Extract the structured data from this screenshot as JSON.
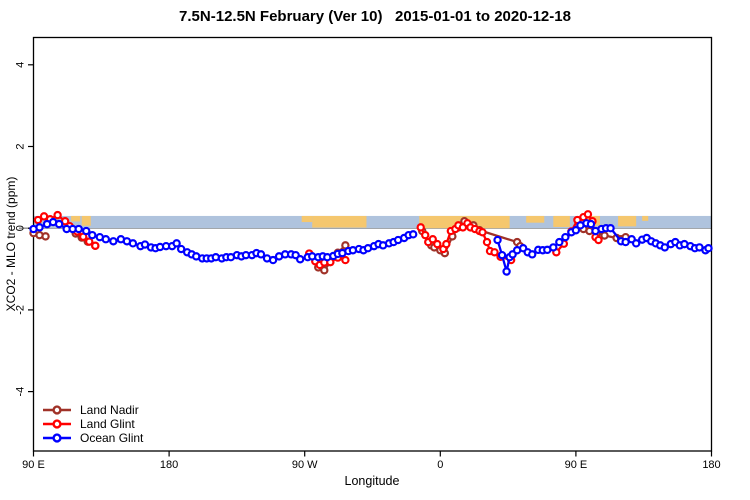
{
  "header": {
    "title": "7.5N-12.5N February (Ver 10)   2015-01-01 to 2020-12-18"
  },
  "colors": {
    "land_nadir": "#A03228",
    "land_glint": "#FF0000",
    "ocean_glint": "#0000FF",
    "band_ocean": "#AFC3DD",
    "band_land": "#F5C76E",
    "zero_line": "#8C8C8C",
    "axis": "#000000"
  },
  "legend": {
    "items": [
      {
        "label": "Land Nadir",
        "color_key": "land_nadir"
      },
      {
        "label": "Land Glint",
        "color_key": "land_glint"
      },
      {
        "label": "Ocean Glint",
        "color_key": "ocean_glint"
      }
    ]
  },
  "chart_data": {
    "type": "line",
    "title": "7.5N-12.5N February (Ver 10)   2015-01-01 to 2020-12-18",
    "xlabel": "Longitude",
    "ylabel": "XCO2 - MLO trend (ppm)",
    "x_axis_note": "longitude in degrees east of 90E, wrapping eastward 90E→180→90W→0→90E→180",
    "xlim": [
      0,
      450
    ],
    "ylim": [
      -5.4,
      4.6
    ],
    "grid": false,
    "legend_position": "bottom-left",
    "x_ticks": [
      {
        "pos": 0,
        "label": "90 E"
      },
      {
        "pos": 90,
        "label": "180"
      },
      {
        "pos": 180,
        "label": "90 W"
      },
      {
        "pos": 270,
        "label": "0"
      },
      {
        "pos": 360,
        "label": "90 E"
      },
      {
        "pos": 450,
        "label": "180"
      }
    ],
    "y_ticks": [
      {
        "pos": -4,
        "label": "-4"
      },
      {
        "pos": -2,
        "label": "-2"
      },
      {
        "pos": 0,
        "label": "0"
      },
      {
        "pos": 2,
        "label": "2"
      },
      {
        "pos": 4,
        "label": "4"
      }
    ],
    "map_band": {
      "description": "world-map latitude strip 7.5N-12.5N drawn along y=0 to y=+0.3, ocean blue with tan land patches",
      "y_range_ppm": [
        0.0,
        0.3
      ],
      "land_patches": [
        {
          "from": 25,
          "to": 31,
          "h": 0.45
        },
        {
          "from": 32,
          "to": 38,
          "h": 0.8
        },
        {
          "from": 178,
          "to": 185,
          "h": 0.5
        },
        {
          "from": 185,
          "to": 221,
          "h": 0.95
        },
        {
          "from": 256,
          "to": 316,
          "h": 1.0
        },
        {
          "from": 327,
          "to": 339,
          "h": 0.55
        },
        {
          "from": 345,
          "to": 356,
          "h": 0.9
        },
        {
          "from": 367,
          "to": 376,
          "h": 0.8
        },
        {
          "from": 388,
          "to": 400,
          "h": 0.85
        },
        {
          "from": 404,
          "to": 408,
          "h": 0.4
        }
      ]
    },
    "series": [
      {
        "name": "Land Nadir",
        "color_key": "land_nadir",
        "segments": [
          [
            [
              0,
              -0.12
            ],
            [
              4,
              -0.17
            ],
            [
              8,
              -0.2
            ]
          ],
          [
            [
              28,
              -0.13
            ],
            [
              32,
              -0.23
            ],
            [
              36,
              -0.33
            ],
            [
              41,
              -0.43
            ]
          ],
          [
            [
              189,
              -0.96
            ],
            [
              193,
              -1.03
            ],
            [
              197,
              -0.83
            ],
            [
              202,
              -0.6
            ],
            [
              207,
              -0.42
            ]
          ],
          [
            [
              258,
              -0.07
            ],
            [
              264,
              -0.42
            ],
            [
              266,
              -0.47
            ],
            [
              270,
              -0.54
            ],
            [
              273,
              -0.61
            ],
            [
              278,
              -0.2
            ],
            [
              282,
              0.02
            ],
            [
              286,
              0.17
            ],
            [
              289,
              0.07
            ],
            [
              292,
              0.07
            ],
            [
              296,
              -0.05
            ],
            [
              321,
              -0.34
            ],
            [
              323,
              -0.44
            ]
          ],
          [
            [
              365,
              -0.02
            ],
            [
              369,
              -0.07
            ],
            [
              374,
              -0.12
            ],
            [
              379,
              -0.18
            ],
            [
              387,
              -0.24
            ],
            [
              390,
              -0.27
            ],
            [
              393,
              -0.22
            ]
          ]
        ]
      },
      {
        "name": "Land Glint",
        "color_key": "land_glint",
        "segments": [
          [
            [
              3,
              0.2
            ],
            [
              7,
              0.29
            ],
            [
              11,
              0.22
            ],
            [
              16,
              0.32
            ],
            [
              21,
              0.17
            ],
            [
              24,
              0.05
            ],
            [
              29,
              -0.08
            ],
            [
              33,
              -0.21
            ],
            [
              37,
              -0.33
            ],
            [
              41,
              -0.43
            ]
          ],
          [
            [
              183,
              -0.62
            ],
            [
              187,
              -0.81
            ],
            [
              190,
              -0.9
            ],
            [
              193,
              -0.84
            ],
            [
              197,
              -0.83
            ],
            [
              202,
              -0.72
            ],
            [
              207,
              -0.78
            ]
          ],
          [
            [
              257,
              0.02
            ],
            [
              260,
              -0.17
            ],
            [
              262,
              -0.34
            ],
            [
              265,
              -0.27
            ],
            [
              268,
              -0.39
            ],
            [
              272,
              -0.51
            ],
            [
              274,
              -0.39
            ],
            [
              277,
              -0.07
            ],
            [
              280,
              -0.02
            ],
            [
              282,
              0.07
            ],
            [
              285,
              0.02
            ],
            [
              288,
              0.12
            ],
            [
              290,
              0.02
            ],
            [
              293,
              -0.02
            ],
            [
              296,
              -0.07
            ],
            [
              298,
              -0.1
            ],
            [
              301,
              -0.34
            ],
            [
              303,
              -0.56
            ],
            [
              306,
              -0.59
            ],
            [
              310,
              -0.7
            ],
            [
              317,
              -0.78
            ]
          ],
          [
            [
              347,
              -0.59
            ],
            [
              352,
              -0.38
            ],
            [
              357,
              -0.08
            ],
            [
              361,
              0.2
            ],
            [
              365,
              0.27
            ],
            [
              368,
              0.34
            ],
            [
              371,
              0.17
            ],
            [
              373,
              -0.22
            ],
            [
              375,
              -0.29
            ]
          ]
        ]
      },
      {
        "name": "Ocean Glint",
        "color_key": "ocean_glint",
        "segments": [
          [
            [
              0,
              -0.02
            ],
            [
              4,
              0.02
            ],
            [
              9,
              0.1
            ],
            [
              13,
              0.15
            ],
            [
              17,
              0.1
            ],
            [
              22,
              -0.02
            ],
            [
              26,
              -0.02
            ],
            [
              30,
              -0.02
            ],
            [
              35,
              -0.07
            ],
            [
              39,
              -0.17
            ],
            [
              44,
              -0.22
            ],
            [
              48,
              -0.27
            ],
            [
              53,
              -0.32
            ],
            [
              58,
              -0.27
            ],
            [
              62,
              -0.32
            ],
            [
              66,
              -0.37
            ],
            [
              71,
              -0.44
            ],
            [
              74,
              -0.4
            ],
            [
              78,
              -0.47
            ],
            [
              81,
              -0.49
            ],
            [
              84,
              -0.46
            ],
            [
              88,
              -0.44
            ],
            [
              92,
              -0.44
            ],
            [
              95,
              -0.37
            ],
            [
              98,
              -0.51
            ],
            [
              102,
              -0.59
            ],
            [
              105,
              -0.64
            ],
            [
              108,
              -0.69
            ],
            [
              112,
              -0.74
            ],
            [
              115,
              -0.74
            ],
            [
              118,
              -0.74
            ],
            [
              121,
              -0.71
            ],
            [
              125,
              -0.74
            ],
            [
              128,
              -0.71
            ],
            [
              131,
              -0.71
            ],
            [
              135,
              -0.66
            ],
            [
              138,
              -0.69
            ],
            [
              141,
              -0.66
            ],
            [
              145,
              -0.66
            ],
            [
              148,
              -0.61
            ],
            [
              151,
              -0.64
            ],
            [
              155,
              -0.74
            ],
            [
              159,
              -0.78
            ],
            [
              163,
              -0.69
            ],
            [
              167,
              -0.64
            ],
            [
              171,
              -0.64
            ],
            [
              174,
              -0.66
            ],
            [
              177,
              -0.76
            ],
            [
              182,
              -0.71
            ],
            [
              185,
              -0.69
            ],
            [
              189,
              -0.71
            ],
            [
              192,
              -0.69
            ],
            [
              195,
              -0.71
            ],
            [
              199,
              -0.68
            ],
            [
              202,
              -0.63
            ],
            [
              205,
              -0.61
            ],
            [
              209,
              -0.56
            ],
            [
              212,
              -0.54
            ],
            [
              216,
              -0.51
            ],
            [
              219,
              -0.54
            ],
            [
              222,
              -0.49
            ],
            [
              226,
              -0.44
            ],
            [
              229,
              -0.39
            ],
            [
              232,
              -0.42
            ],
            [
              236,
              -0.37
            ],
            [
              239,
              -0.34
            ],
            [
              242,
              -0.29
            ],
            [
              246,
              -0.24
            ],
            [
              249,
              -0.17
            ],
            [
              252,
              -0.15
            ]
          ],
          [
            [
              308,
              -0.29
            ],
            [
              311,
              -0.66
            ],
            [
              314,
              -1.06
            ],
            [
              316,
              -0.71
            ],
            [
              318,
              -0.64
            ],
            [
              321,
              -0.54
            ],
            [
              325,
              -0.49
            ],
            [
              328,
              -0.59
            ],
            [
              331,
              -0.64
            ],
            [
              335,
              -0.53
            ],
            [
              338,
              -0.54
            ],
            [
              341,
              -0.53
            ],
            [
              345,
              -0.47
            ],
            [
              349,
              -0.34
            ],
            [
              353,
              -0.22
            ],
            [
              357,
              -0.1
            ],
            [
              360,
              -0.05
            ],
            [
              363,
              0.07
            ],
            [
              367,
              0.12
            ],
            [
              370,
              0.1
            ],
            [
              373,
              -0.07
            ],
            [
              377,
              -0.02
            ],
            [
              380,
              0.0
            ],
            [
              383,
              0.0
            ],
            [
              390,
              -0.32
            ],
            [
              393,
              -0.34
            ],
            [
              397,
              -0.27
            ],
            [
              400,
              -0.37
            ],
            [
              404,
              -0.28
            ],
            [
              407,
              -0.24
            ],
            [
              410,
              -0.32
            ],
            [
              413,
              -0.37
            ],
            [
              416,
              -0.42
            ],
            [
              419,
              -0.47
            ],
            [
              423,
              -0.39
            ],
            [
              426,
              -0.34
            ],
            [
              429,
              -0.42
            ],
            [
              432,
              -0.39
            ],
            [
              436,
              -0.44
            ],
            [
              439,
              -0.49
            ],
            [
              442,
              -0.47
            ],
            [
              446,
              -0.54
            ],
            [
              448,
              -0.49
            ]
          ]
        ]
      }
    ]
  }
}
